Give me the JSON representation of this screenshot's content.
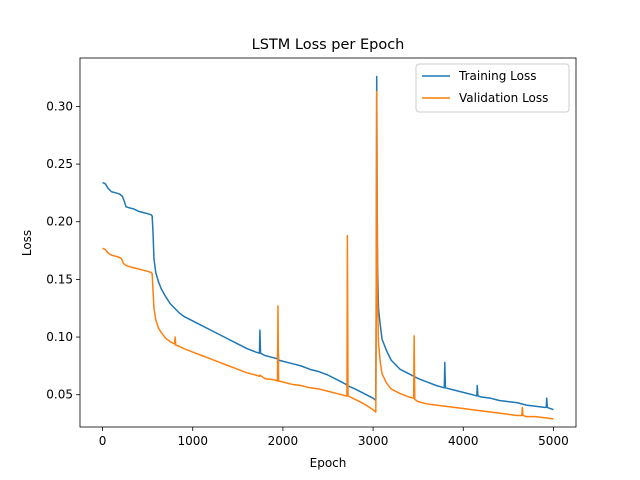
{
  "chart_data": {
    "type": "line",
    "title": "LSTM Loss per Epoch",
    "xlabel": "Epoch",
    "ylabel": "Loss",
    "xlim": [
      -250,
      5250
    ],
    "ylim": [
      0.022,
      0.342
    ],
    "xticks": [
      0,
      1000,
      2000,
      3000,
      4000,
      5000
    ],
    "yticks": [
      0.05,
      0.1,
      0.15,
      0.2,
      0.25,
      0.3
    ],
    "ytick_labels": [
      "0.05",
      "0.10",
      "0.15",
      "0.20",
      "0.25",
      "0.30"
    ],
    "grid": false,
    "legend_position": "upper-right",
    "series": [
      {
        "name": "Training Loss",
        "color": "#1f77b4",
        "points": [
          [
            0,
            0.234
          ],
          [
            30,
            0.233
          ],
          [
            60,
            0.229
          ],
          [
            100,
            0.226
          ],
          [
            150,
            0.225
          ],
          [
            190,
            0.224
          ],
          [
            220,
            0.222
          ],
          [
            240,
            0.218
          ],
          [
            260,
            0.213
          ],
          [
            300,
            0.212
          ],
          [
            350,
            0.211
          ],
          [
            400,
            0.209
          ],
          [
            450,
            0.208
          ],
          [
            500,
            0.207
          ],
          [
            540,
            0.206
          ],
          [
            550,
            0.205
          ],
          [
            560,
            0.19
          ],
          [
            570,
            0.168
          ],
          [
            590,
            0.156
          ],
          [
            620,
            0.148
          ],
          [
            650,
            0.142
          ],
          [
            700,
            0.135
          ],
          [
            750,
            0.129
          ],
          [
            800,
            0.125
          ],
          [
            850,
            0.121
          ],
          [
            900,
            0.118
          ],
          [
            1000,
            0.114
          ],
          [
            1100,
            0.11
          ],
          [
            1200,
            0.106
          ],
          [
            1300,
            0.102
          ],
          [
            1400,
            0.098
          ],
          [
            1500,
            0.094
          ],
          [
            1600,
            0.09
          ],
          [
            1700,
            0.087
          ],
          [
            1740,
            0.086
          ],
          [
            1745,
            0.106
          ],
          [
            1752,
            0.086
          ],
          [
            1800,
            0.084
          ],
          [
            1900,
            0.082
          ],
          [
            1940,
            0.081
          ],
          [
            1945,
            0.094
          ],
          [
            1952,
            0.08
          ],
          [
            2000,
            0.079
          ],
          [
            2100,
            0.077
          ],
          [
            2200,
            0.075
          ],
          [
            2300,
            0.072
          ],
          [
            2400,
            0.07
          ],
          [
            2500,
            0.067
          ],
          [
            2600,
            0.063
          ],
          [
            2700,
            0.059
          ],
          [
            2710,
            0.058
          ],
          [
            2800,
            0.055
          ],
          [
            2900,
            0.051
          ],
          [
            3000,
            0.047
          ],
          [
            3030,
            0.045
          ],
          [
            3035,
            0.15
          ],
          [
            3040,
            0.326
          ],
          [
            3045,
            0.22
          ],
          [
            3050,
            0.16
          ],
          [
            3060,
            0.125
          ],
          [
            3080,
            0.11
          ],
          [
            3100,
            0.098
          ],
          [
            3150,
            0.088
          ],
          [
            3200,
            0.08
          ],
          [
            3250,
            0.076
          ],
          [
            3300,
            0.072
          ],
          [
            3400,
            0.068
          ],
          [
            3500,
            0.064
          ],
          [
            3600,
            0.061
          ],
          [
            3700,
            0.058
          ],
          [
            3790,
            0.056
          ],
          [
            3795,
            0.078
          ],
          [
            3802,
            0.056
          ],
          [
            3900,
            0.054
          ],
          [
            4000,
            0.052
          ],
          [
            4100,
            0.05
          ],
          [
            4150,
            0.049
          ],
          [
            4155,
            0.058
          ],
          [
            4162,
            0.049
          ],
          [
            4200,
            0.048
          ],
          [
            4300,
            0.047
          ],
          [
            4400,
            0.045
          ],
          [
            4500,
            0.044
          ],
          [
            4600,
            0.043
          ],
          [
            4700,
            0.041
          ],
          [
            4800,
            0.04
          ],
          [
            4900,
            0.039
          ],
          [
            4920,
            0.039
          ],
          [
            4925,
            0.047
          ],
          [
            4932,
            0.039
          ],
          [
            5000,
            0.037
          ]
        ]
      },
      {
        "name": "Validation Loss",
        "color": "#ff7f0e",
        "points": [
          [
            0,
            0.177
          ],
          [
            30,
            0.176
          ],
          [
            60,
            0.173
          ],
          [
            100,
            0.171
          ],
          [
            150,
            0.17
          ],
          [
            190,
            0.169
          ],
          [
            210,
            0.168
          ],
          [
            230,
            0.164
          ],
          [
            260,
            0.162
          ],
          [
            300,
            0.161
          ],
          [
            350,
            0.16
          ],
          [
            400,
            0.159
          ],
          [
            450,
            0.158
          ],
          [
            500,
            0.157
          ],
          [
            540,
            0.156
          ],
          [
            550,
            0.155
          ],
          [
            560,
            0.14
          ],
          [
            570,
            0.125
          ],
          [
            590,
            0.115
          ],
          [
            620,
            0.108
          ],
          [
            650,
            0.104
          ],
          [
            700,
            0.099
          ],
          [
            750,
            0.096
          ],
          [
            800,
            0.094
          ],
          [
            805,
            0.1
          ],
          [
            812,
            0.093
          ],
          [
            850,
            0.092
          ],
          [
            900,
            0.09
          ],
          [
            1000,
            0.087
          ],
          [
            1100,
            0.084
          ],
          [
            1200,
            0.081
          ],
          [
            1300,
            0.078
          ],
          [
            1400,
            0.075
          ],
          [
            1500,
            0.072
          ],
          [
            1600,
            0.069
          ],
          [
            1700,
            0.067
          ],
          [
            1740,
            0.066
          ],
          [
            1745,
            0.067
          ],
          [
            1800,
            0.064
          ],
          [
            1900,
            0.063
          ],
          [
            1940,
            0.062
          ],
          [
            1945,
            0.127
          ],
          [
            1952,
            0.062
          ],
          [
            2000,
            0.061
          ],
          [
            2100,
            0.059
          ],
          [
            2200,
            0.058
          ],
          [
            2300,
            0.056
          ],
          [
            2400,
            0.055
          ],
          [
            2500,
            0.053
          ],
          [
            2600,
            0.051
          ],
          [
            2700,
            0.049
          ],
          [
            2710,
            0.049
          ],
          [
            2715,
            0.188
          ],
          [
            2722,
            0.049
          ],
          [
            2800,
            0.046
          ],
          [
            2900,
            0.042
          ],
          [
            3000,
            0.037
          ],
          [
            3030,
            0.035
          ],
          [
            3035,
            0.12
          ],
          [
            3040,
            0.313
          ],
          [
            3045,
            0.2
          ],
          [
            3050,
            0.13
          ],
          [
            3060,
            0.095
          ],
          [
            3080,
            0.078
          ],
          [
            3100,
            0.068
          ],
          [
            3150,
            0.06
          ],
          [
            3200,
            0.055
          ],
          [
            3300,
            0.051
          ],
          [
            3400,
            0.048
          ],
          [
            3450,
            0.047
          ],
          [
            3455,
            0.101
          ],
          [
            3462,
            0.046
          ],
          [
            3500,
            0.044
          ],
          [
            3600,
            0.042
          ],
          [
            3700,
            0.041
          ],
          [
            3800,
            0.04
          ],
          [
            3900,
            0.039
          ],
          [
            4000,
            0.038
          ],
          [
            4100,
            0.037
          ],
          [
            4200,
            0.036
          ],
          [
            4300,
            0.035
          ],
          [
            4400,
            0.034
          ],
          [
            4500,
            0.033
          ],
          [
            4600,
            0.032
          ],
          [
            4650,
            0.032
          ],
          [
            4655,
            0.039
          ],
          [
            4662,
            0.032
          ],
          [
            4700,
            0.031
          ],
          [
            4800,
            0.031
          ],
          [
            4900,
            0.03
          ],
          [
            5000,
            0.029
          ]
        ]
      }
    ]
  }
}
